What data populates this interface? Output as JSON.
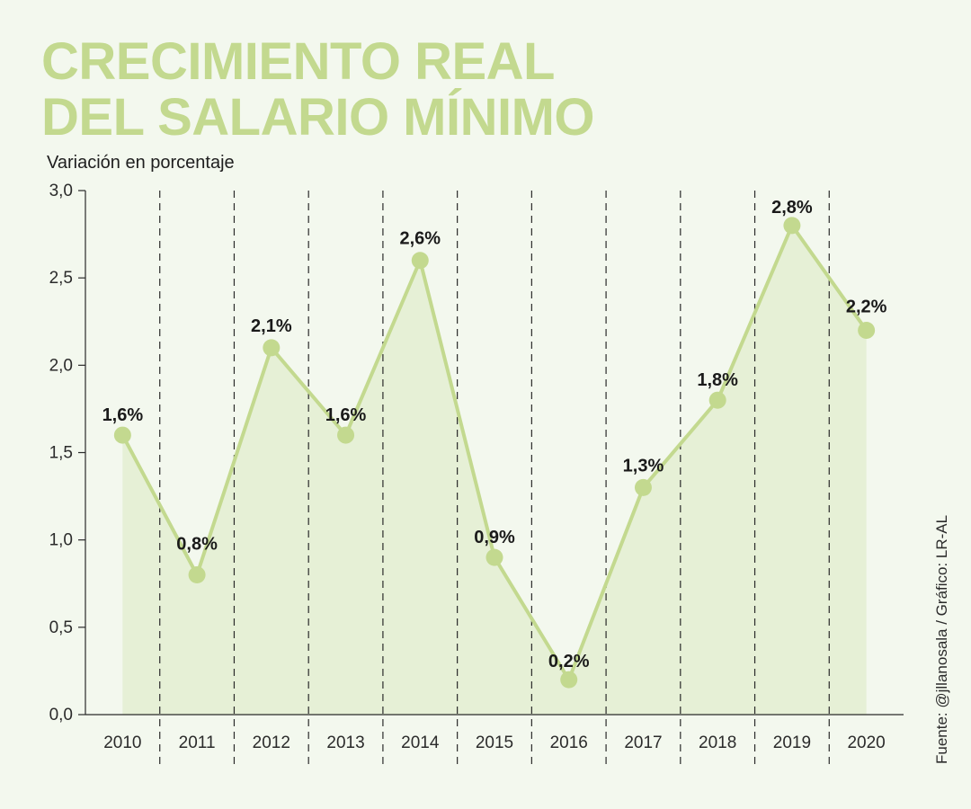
{
  "title_lines": [
    "CRECIMIENTO REAL",
    "DEL SALARIO MÍNIMO"
  ],
  "subtitle": "Variación en porcentaje",
  "source": "Fuente: @jllanosala / Gráfico: LR-AL",
  "colors": {
    "line": "#c3d98f",
    "area": "#e6f0d6",
    "background": "#f3f8ee",
    "text": "#1e1e1e"
  },
  "chart_data": {
    "type": "line",
    "title": "CRECIMIENTO REAL DEL SALARIO MÍNIMO",
    "ylabel": "Variación en porcentaje",
    "xlabel": "",
    "categories": [
      "2010",
      "2011",
      "2012",
      "2013",
      "2014",
      "2015",
      "2016",
      "2017",
      "2018",
      "2019",
      "2020"
    ],
    "values": [
      1.6,
      0.8,
      2.1,
      1.6,
      2.6,
      0.9,
      0.2,
      1.3,
      1.8,
      2.8,
      2.2
    ],
    "data_labels": [
      "1,6%",
      "0,8%",
      "2,1%",
      "1,6%",
      "2,6%",
      "0,9%",
      "0,2%",
      "1,3%",
      "1,8%",
      "2,8%",
      "2,2%"
    ],
    "ylim": [
      0,
      3.0
    ],
    "yticks": [
      0,
      0.5,
      1.0,
      1.5,
      2.0,
      2.5,
      3.0
    ],
    "ytick_labels": [
      "0,0",
      "0,5",
      "1,0",
      "1,5",
      "2,0",
      "2,5",
      "3,0"
    ],
    "grid": "vertical dashed separators"
  }
}
